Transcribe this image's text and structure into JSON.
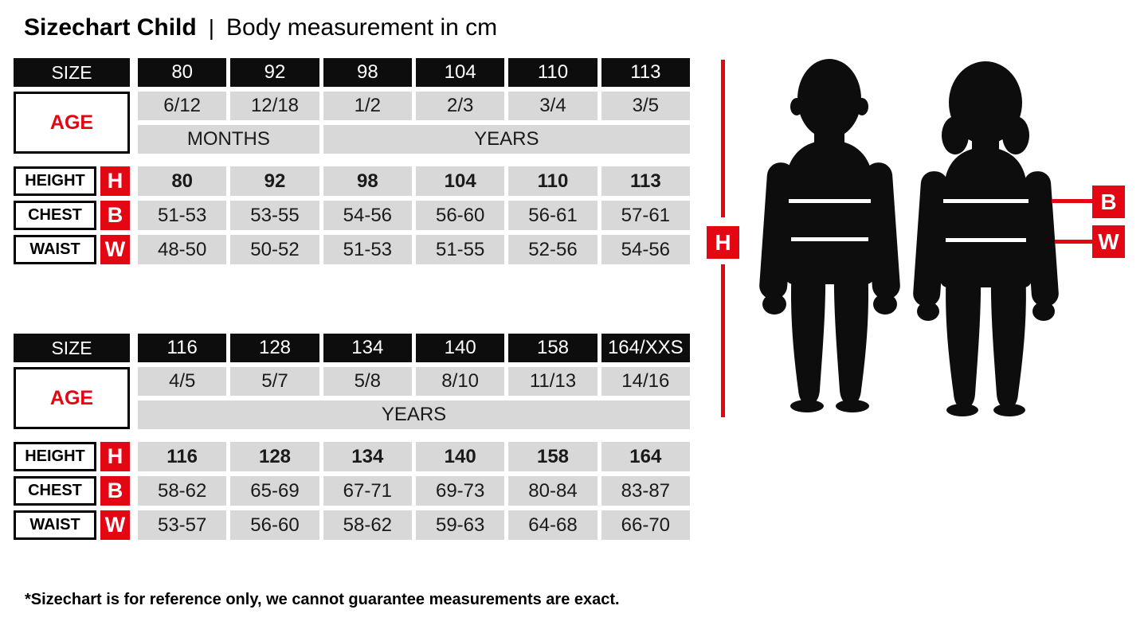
{
  "page": {
    "title_bold": "Sizechart Child",
    "title_separator": "|",
    "title_rest": "Body measurement in cm",
    "footnote": "*Sizechart is for reference only, we cannot guarantee measurements are exact."
  },
  "labels": {
    "size": "SIZE",
    "age": "AGE",
    "height": "HEIGHT",
    "chest": "CHEST",
    "waist": "WAIST",
    "h": "H",
    "b": "B",
    "w": "W"
  },
  "colors": {
    "accent_red": "#e30613",
    "cell_black": "#0d0d0d",
    "cell_gray": "#d8d8d8",
    "text_white": "#ffffff"
  },
  "chart_data": [
    {
      "type": "table",
      "columns": [
        "80",
        "92",
        "98",
        "104",
        "110",
        "113"
      ],
      "age": [
        "6/12",
        "12/18",
        "1/2",
        "2/3",
        "3/4",
        "3/5"
      ],
      "age_unit_spans": [
        {
          "label": "MONTHS",
          "span": 2
        },
        {
          "label": "YEARS",
          "span": 4
        }
      ],
      "height": [
        "80",
        "92",
        "98",
        "104",
        "110",
        "113"
      ],
      "chest": [
        "51-53",
        "53-55",
        "54-56",
        "56-60",
        "56-61",
        "57-61"
      ],
      "waist": [
        "48-50",
        "50-52",
        "51-53",
        "51-55",
        "52-56",
        "54-56"
      ]
    },
    {
      "type": "table",
      "columns": [
        "116",
        "128",
        "134",
        "140",
        "158",
        "164/XXS"
      ],
      "age": [
        "4/5",
        "5/7",
        "5/8",
        "8/10",
        "11/13",
        "14/16"
      ],
      "age_unit_spans": [
        {
          "label": "YEARS",
          "span": 6
        }
      ],
      "height": [
        "116",
        "128",
        "134",
        "140",
        "158",
        "164"
      ],
      "chest": [
        "58-62",
        "65-69",
        "67-71",
        "69-73",
        "80-84",
        "83-87"
      ],
      "waist": [
        "53-57",
        "56-60",
        "58-62",
        "59-63",
        "64-68",
        "66-70"
      ]
    }
  ]
}
